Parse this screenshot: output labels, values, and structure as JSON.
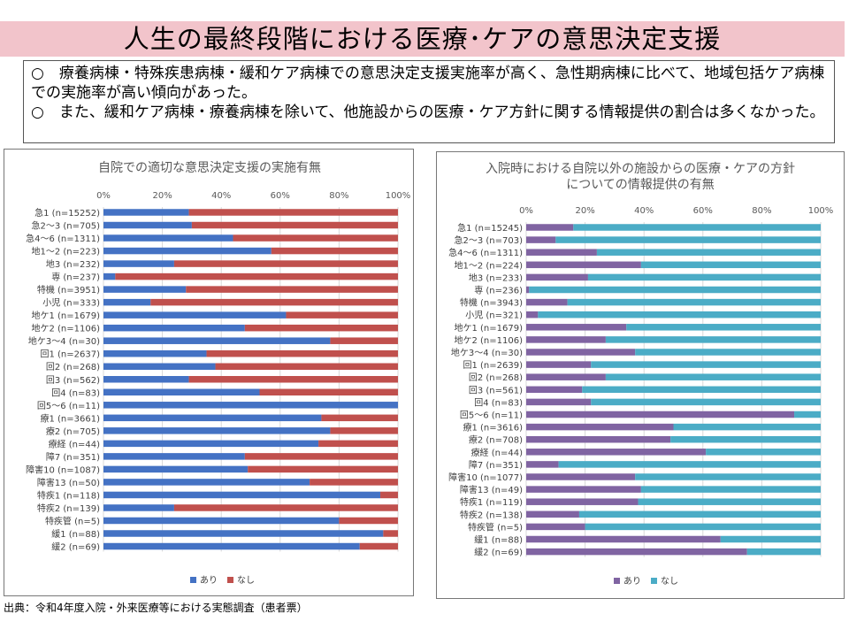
{
  "page": {
    "title": "人生の最終段階における医療･ケアの意思決定支援",
    "bullets": [
      "○　療養病棟・特殊疾患病棟・緩和ケア病棟での意思決定支援実施率が高く、急性期病棟に比べて、地域包括ケア病棟での実施率が高い傾向があった。",
      "○　また、緩和ケア病棟・療養病棟を除いて、他施設からの医療・ケア方針に関する情報提供の割合は多くなかった。"
    ],
    "source": "出典：令和4年度入院・外来医療等における実態調査（患者票）"
  },
  "chart_data": [
    {
      "type": "bar",
      "orientation": "horizontal",
      "stacked": true,
      "title": "自院での適切な意思決定支援の実施有無",
      "x_ticks": [
        "0%",
        "20%",
        "40%",
        "60%",
        "80%",
        "100%"
      ],
      "xlim": [
        0,
        100
      ],
      "legend_position": "bottom",
      "categories": [
        "急1 (n=15252)",
        "急2～3 (n=705)",
        "急4～6 (n=1311)",
        "地1～2 (n=223)",
        "地3 (n=232)",
        "専 (n=237)",
        "特機 (n=3951)",
        "小児 (n=333)",
        "地ケ1 (n=1679)",
        "地ケ2 (n=1106)",
        "地ケ3～4 (n=30)",
        "回1 (n=2637)",
        "回2 (n=268)",
        "回3 (n=562)",
        "回4 (n=83)",
        "回5～6 (n=11)",
        "療1 (n=3661)",
        "療2 (n=705)",
        "療経 (n=44)",
        "障7 (n=351)",
        "障害10 (n=1087)",
        "障害13 (n=50)",
        "特疾1 (n=118)",
        "特疾2 (n=139)",
        "特疾管 (n=5)",
        "緩1 (n=88)",
        "緩2 (n=69)"
      ],
      "series": [
        {
          "name": "あり",
          "color": "#4472c4",
          "values": [
            29,
            30,
            44,
            57,
            24,
            4,
            28,
            16,
            62,
            48,
            77,
            35,
            38,
            29,
            53,
            100,
            74,
            77,
            73,
            48,
            49,
            70,
            94,
            24,
            80,
            95,
            87
          ]
        },
        {
          "name": "なし",
          "color": "#c0504d",
          "values": [
            71,
            70,
            56,
            43,
            76,
            96,
            72,
            84,
            38,
            52,
            23,
            65,
            62,
            71,
            47,
            0,
            26,
            23,
            27,
            52,
            51,
            30,
            6,
            76,
            20,
            5,
            13
          ]
        }
      ]
    },
    {
      "type": "bar",
      "orientation": "horizontal",
      "stacked": true,
      "title": "入院時における自院以外の施設からの医療・ケアの方針についての情報提供の有無",
      "title_lines": [
        "入院時における自院以外の施設からの医療・ケアの方針",
        "についての情報提供の有無"
      ],
      "x_ticks": [
        "0%",
        "20%",
        "40%",
        "60%",
        "80%",
        "100%"
      ],
      "xlim": [
        0,
        100
      ],
      "legend_position": "bottom",
      "categories": [
        "急1 (n=15245)",
        "急2～3 (n=703)",
        "急4～6 (n=1311)",
        "地1～2 (n=224)",
        "地3 (n=233)",
        "専 (n=236)",
        "特機 (n=3943)",
        "小児 (n=321)",
        "地ケ1 (n=1679)",
        "地ケ2 (n=1106)",
        "地ケ3～4 (n=30)",
        "回1 (n=2639)",
        "回2 (n=268)",
        "回3 (n=561)",
        "回4 (n=83)",
        "回5～6 (n=11)",
        "療1 (n=3616)",
        "療2 (n=708)",
        "療経 (n=44)",
        "障7 (n=351)",
        "障害10 (n=1077)",
        "障害13 (n=49)",
        "特疾1 (n=119)",
        "特疾2 (n=138)",
        "特疾管 (n=5)",
        "緩1 (n=88)",
        "緩2 (n=69)"
      ],
      "series": [
        {
          "name": "あり",
          "color": "#8064a2",
          "values": [
            16,
            10,
            24,
            39,
            21,
            1,
            14,
            4,
            34,
            27,
            37,
            22,
            27,
            19,
            22,
            91,
            50,
            49,
            61,
            11,
            37,
            39,
            38,
            18,
            20,
            66,
            75
          ]
        },
        {
          "name": "なし",
          "color": "#4bacc6",
          "values": [
            84,
            90,
            76,
            61,
            79,
            99,
            86,
            96,
            66,
            73,
            63,
            78,
            73,
            81,
            78,
            9,
            50,
            51,
            39,
            89,
            63,
            61,
            62,
            82,
            80,
            34,
            25
          ]
        }
      ]
    }
  ]
}
